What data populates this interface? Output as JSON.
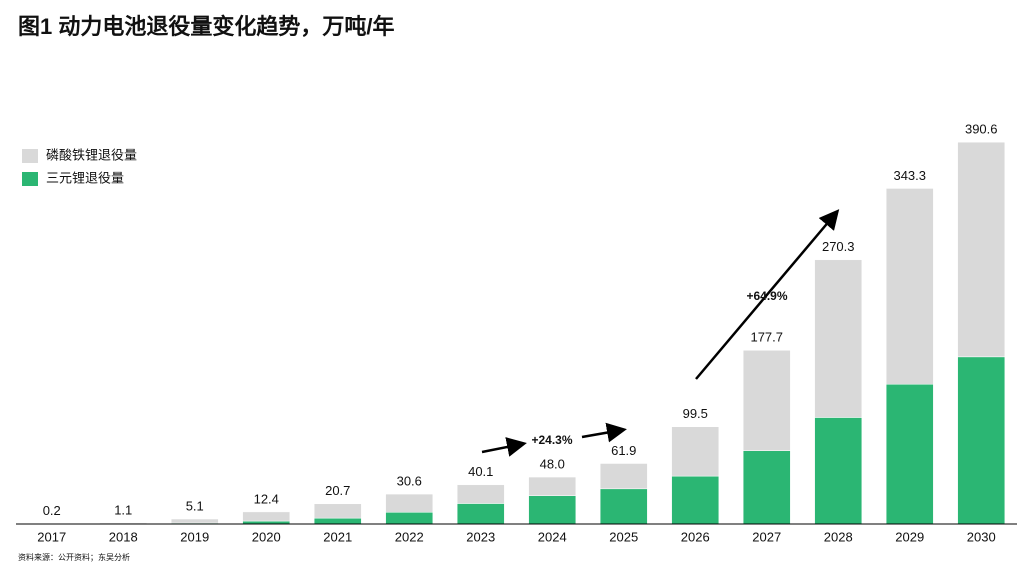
{
  "chart_data": {
    "type": "stacked-bar",
    "title": "图1 动力电池退役量变化趋势，万吨/年",
    "categories": [
      "2017",
      "2018",
      "2019",
      "2020",
      "2021",
      "2022",
      "2023",
      "2024",
      "2025",
      "2026",
      "2027",
      "2028",
      "2029",
      "2030"
    ],
    "series": [
      {
        "name": "三元锂退役量",
        "color": "#2bb673",
        "values": [
          0,
          0.3,
          1,
          3,
          6,
          12,
          21,
          29,
          36,
          49,
          75,
          109,
          143,
          171
        ]
      },
      {
        "name": "磷酸铁锂退役量",
        "color": "#d9d9d9",
        "values": [
          0.2,
          0.8,
          4.1,
          9.4,
          14.7,
          18.6,
          19.1,
          19,
          25.9,
          50.5,
          102.7,
          161.3,
          200.3,
          219.6
        ]
      }
    ],
    "totals": {
      "values": [
        0.2,
        1.1,
        5.1,
        12.4,
        20.7,
        30.6,
        40.1,
        48,
        61.9,
        99.5,
        177.7,
        270.3,
        343.3,
        390.6
      ],
      "value_labels": [
        "0.2",
        "1.1",
        "5.1",
        "12.4",
        "20.7",
        "30.6",
        "40.1",
        "48.0",
        "61.9",
        "99.5",
        "177.7",
        "270.3",
        "343.3",
        "390.6"
      ]
    },
    "ylim": [
      0,
      400
    ],
    "legend": "top-left",
    "annotations": [
      "+24.3%",
      "+64.9%"
    ],
    "source": "资料来源：公开资料；东吴分析"
  }
}
